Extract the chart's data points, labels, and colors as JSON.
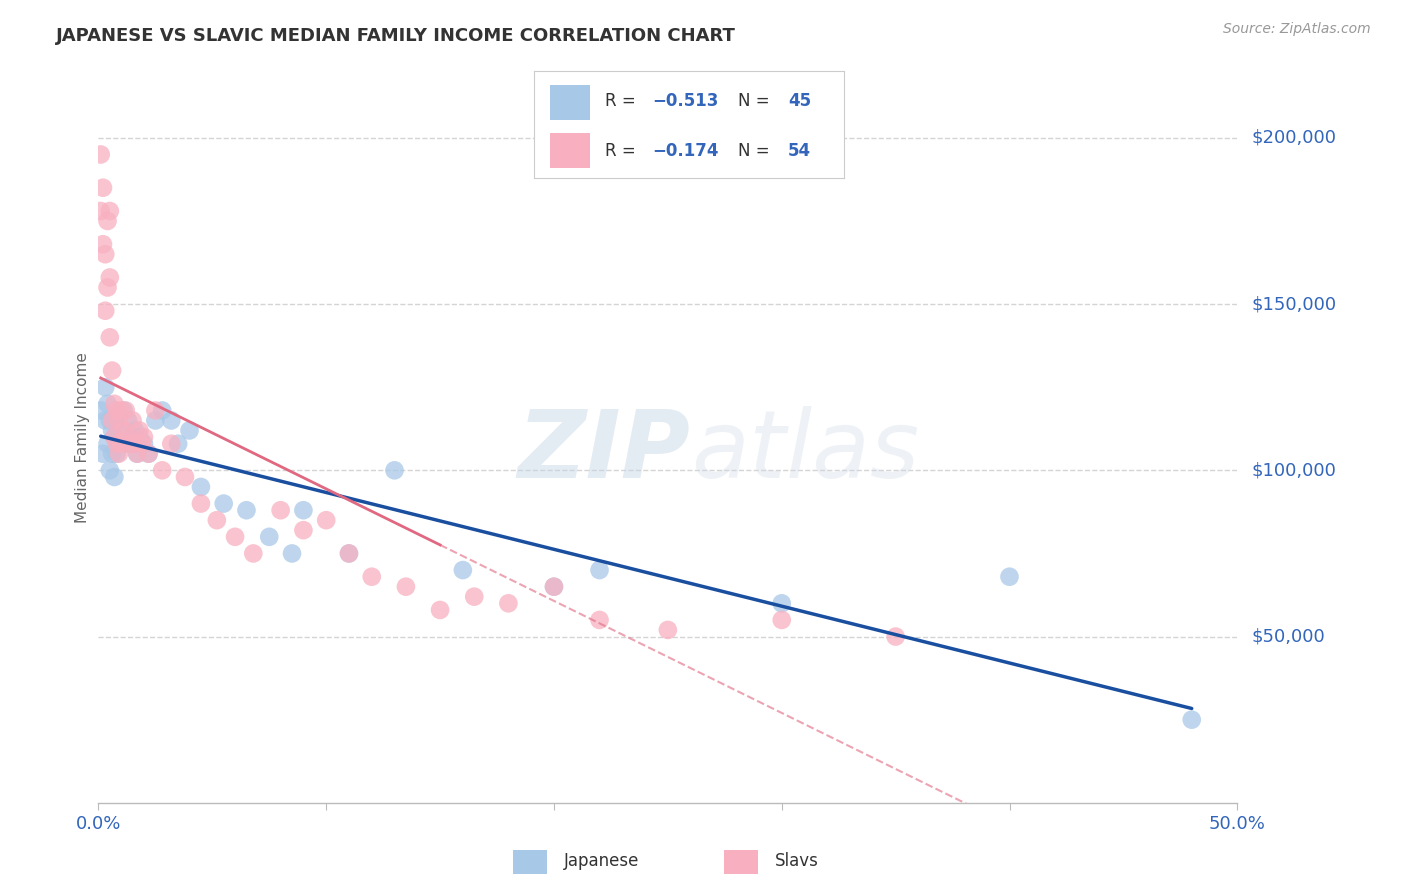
{
  "title": "JAPANESE VS SLAVIC MEDIAN FAMILY INCOME CORRELATION CHART",
  "source": "Source: ZipAtlas.com",
  "ylabel": "Median Family Income",
  "xlim": [
    0.0,
    0.5
  ],
  "ylim": [
    0,
    220000
  ],
  "ytick_positions": [
    50000,
    100000,
    150000,
    200000
  ],
  "ytick_labels": [
    "$50,000",
    "$100,000",
    "$150,000",
    "$200,000"
  ],
  "japanese_color": "#a8c8e8",
  "slavs_color": "#f8b0c0",
  "japanese_line_color": "#1a4fa0",
  "slavs_line_color": "#e06880",
  "watermark_zip": "ZIP",
  "watermark_atlas": "atlas",
  "background_color": "#ffffff",
  "grid_color": "#d0d0d0",
  "japanese_x": [
    0.001,
    0.002,
    0.003,
    0.003,
    0.004,
    0.004,
    0.005,
    0.005,
    0.006,
    0.006,
    0.007,
    0.007,
    0.008,
    0.008,
    0.009,
    0.01,
    0.011,
    0.012,
    0.013,
    0.014,
    0.015,
    0.016,
    0.017,
    0.018,
    0.02,
    0.022,
    0.025,
    0.028,
    0.032,
    0.035,
    0.04,
    0.045,
    0.055,
    0.065,
    0.075,
    0.085,
    0.09,
    0.11,
    0.13,
    0.16,
    0.2,
    0.22,
    0.3,
    0.4,
    0.48
  ],
  "japanese_y": [
    118000,
    105000,
    125000,
    115000,
    120000,
    108000,
    115000,
    100000,
    112000,
    105000,
    110000,
    98000,
    115000,
    105000,
    108000,
    112000,
    118000,
    108000,
    115000,
    110000,
    108000,
    112000,
    105000,
    110000,
    108000,
    105000,
    115000,
    118000,
    115000,
    108000,
    112000,
    95000,
    90000,
    88000,
    80000,
    75000,
    88000,
    75000,
    100000,
    70000,
    65000,
    70000,
    60000,
    68000,
    25000
  ],
  "slavs_x": [
    0.001,
    0.001,
    0.002,
    0.002,
    0.003,
    0.003,
    0.004,
    0.004,
    0.005,
    0.005,
    0.005,
    0.006,
    0.006,
    0.007,
    0.007,
    0.008,
    0.008,
    0.009,
    0.009,
    0.01,
    0.01,
    0.011,
    0.012,
    0.013,
    0.014,
    0.015,
    0.016,
    0.017,
    0.018,
    0.019,
    0.02,
    0.022,
    0.025,
    0.028,
    0.032,
    0.038,
    0.045,
    0.052,
    0.06,
    0.068,
    0.08,
    0.09,
    0.1,
    0.11,
    0.12,
    0.135,
    0.15,
    0.165,
    0.18,
    0.2,
    0.22,
    0.25,
    0.3,
    0.35
  ],
  "slavs_y": [
    195000,
    178000,
    185000,
    168000,
    165000,
    148000,
    175000,
    155000,
    158000,
    140000,
    178000,
    130000,
    115000,
    120000,
    110000,
    118000,
    108000,
    115000,
    105000,
    118000,
    108000,
    112000,
    118000,
    110000,
    108000,
    115000,
    108000,
    105000,
    112000,
    108000,
    110000,
    105000,
    118000,
    100000,
    108000,
    98000,
    90000,
    85000,
    80000,
    75000,
    88000,
    82000,
    85000,
    75000,
    68000,
    65000,
    58000,
    62000,
    60000,
    65000,
    55000,
    52000,
    55000,
    50000
  ]
}
